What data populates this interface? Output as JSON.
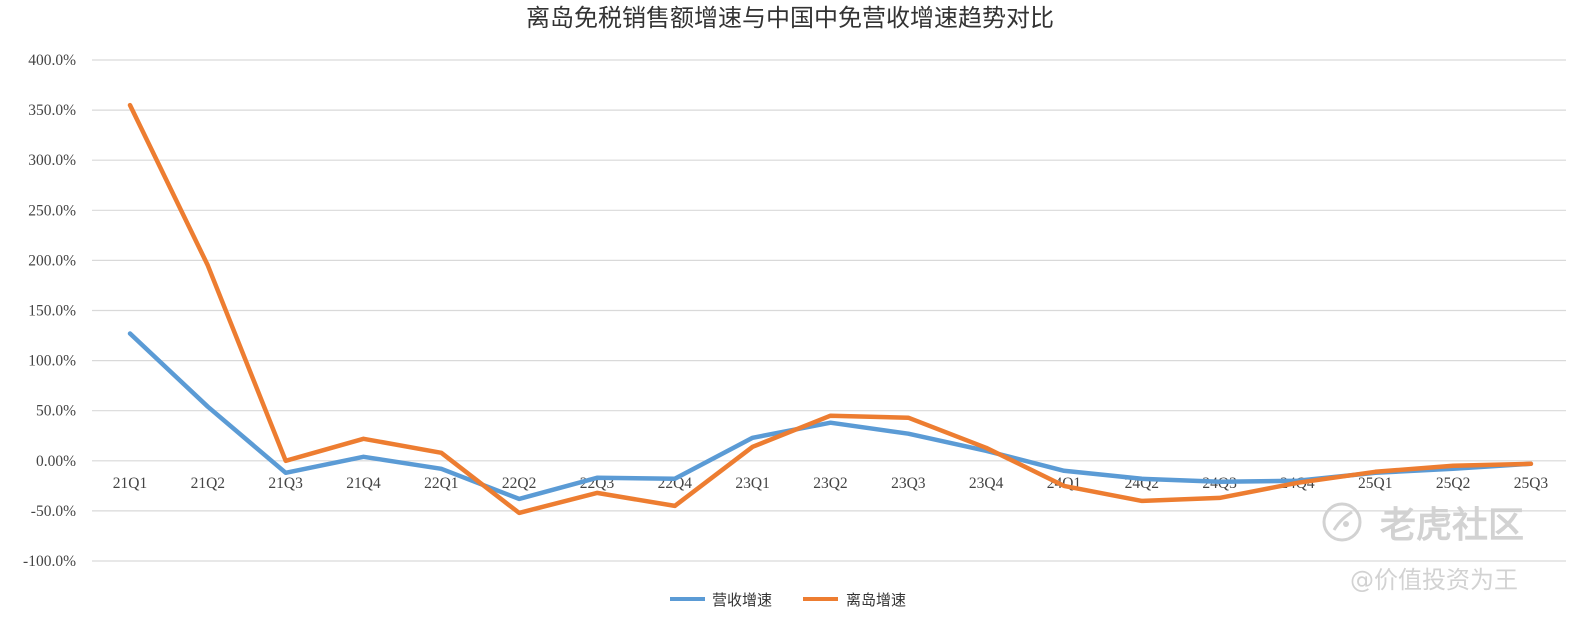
{
  "chart_data": {
    "type": "line",
    "title": "离岛免税销售额增速与中国中免营收增速趋势对比",
    "categories": [
      "21Q1",
      "21Q2",
      "21Q3",
      "21Q4",
      "22Q1",
      "22Q2",
      "22Q3",
      "22Q4",
      "23Q1",
      "23Q2",
      "23Q3",
      "23Q4",
      "24Q1",
      "24Q2",
      "24Q3",
      "24Q4",
      "25Q1",
      "25Q2",
      "25Q3"
    ],
    "ylim": [
      -100,
      400
    ],
    "y_ticks": [
      "400.0%",
      "350.0%",
      "300.0%",
      "250.0%",
      "200.0%",
      "150.0%",
      "100.0%",
      "50.0%",
      "0.00%",
      "-50.0%",
      "-100.0%"
    ],
    "y_tick_values": [
      400,
      350,
      300,
      250,
      200,
      150,
      100,
      50,
      0,
      -50,
      -100
    ],
    "grid": true,
    "legend_position": "bottom",
    "series": [
      {
        "name": "营收增速",
        "color": "#5b9bd5",
        "values": [
          127,
          54,
          -12,
          4,
          -8,
          -38,
          -17,
          -18,
          23,
          38,
          27,
          10,
          -10,
          -18,
          -21,
          -20,
          -12,
          -8,
          -3
        ]
      },
      {
        "name": "离岛增速",
        "color": "#ed7d31",
        "values": [
          355,
          195,
          0,
          22,
          8,
          -52,
          -32,
          -45,
          14,
          45,
          43,
          13,
          -25,
          -40,
          -37,
          -22,
          -11,
          -5,
          -3
        ]
      }
    ]
  },
  "watermark": {
    "brand": "老虎社区",
    "author": "@价值投资为王"
  }
}
